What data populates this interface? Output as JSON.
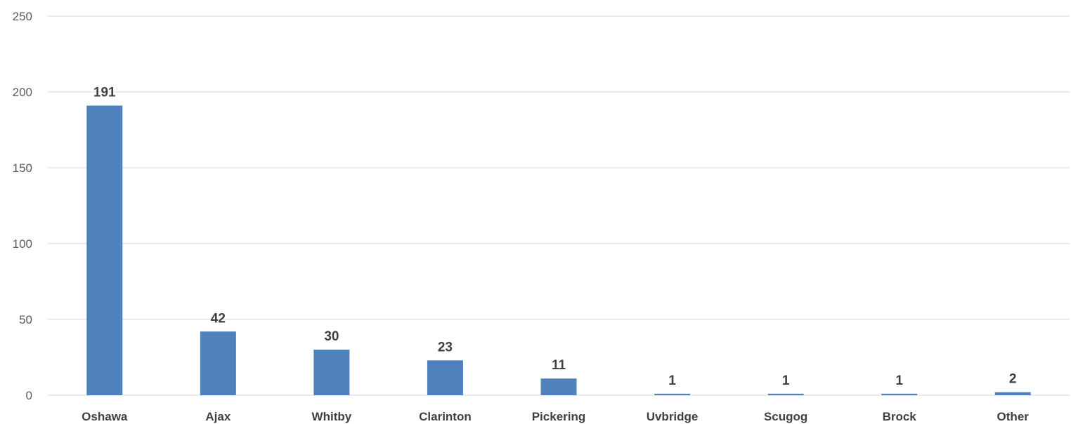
{
  "chart_data": {
    "type": "bar",
    "categories": [
      "Oshawa",
      "Ajax",
      "Whitby",
      "Clarinton",
      "Pickering",
      "Uvbridge",
      "Scugog",
      "Brock",
      "Other"
    ],
    "values": [
      191,
      42,
      30,
      23,
      11,
      1,
      1,
      1,
      2
    ],
    "data_labels": [
      "191",
      "42",
      "30",
      "23",
      "11",
      "1",
      "1",
      "1",
      "2"
    ],
    "y_ticks": [
      "0",
      "50",
      "100",
      "150",
      "200",
      "250"
    ],
    "ylim": [
      0,
      250
    ],
    "grid": true,
    "legend": "none",
    "bar_color": "#4f81bd",
    "title": "",
    "xlabel": "",
    "ylabel": ""
  }
}
